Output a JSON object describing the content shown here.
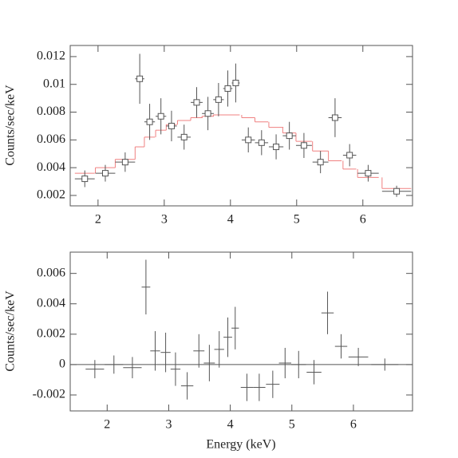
{
  "chart_data": [
    {
      "type": "errorbar",
      "ylabel": "Counts/sec/keV",
      "x": [
        1.8,
        2.11,
        2.41,
        2.63,
        2.78,
        2.95,
        3.11,
        3.3,
        3.49,
        3.66,
        3.82,
        3.96,
        4.08,
        4.27,
        4.47,
        4.69,
        4.89,
        5.11,
        5.36,
        5.58,
        5.8,
        6.08,
        6.51
      ],
      "xerr": [
        0.15,
        0.15,
        0.15,
        0.07,
        0.08,
        0.08,
        0.08,
        0.1,
        0.09,
        0.09,
        0.08,
        0.07,
        0.06,
        0.1,
        0.1,
        0.11,
        0.1,
        0.12,
        0.12,
        0.1,
        0.1,
        0.16,
        0.22
      ],
      "values": [
        0.0032,
        0.0036,
        0.0044,
        0.0104,
        0.0073,
        0.0077,
        0.007,
        0.0062,
        0.0087,
        0.0079,
        0.0089,
        0.0097,
        0.0101,
        0.006,
        0.0058,
        0.0055,
        0.0063,
        0.0056,
        0.0044,
        0.0076,
        0.0049,
        0.0036,
        0.0023
      ],
      "yerr": [
        0.0006,
        0.0006,
        0.0007,
        0.0018,
        0.0013,
        0.0013,
        0.0011,
        0.0009,
        0.0011,
        0.0012,
        0.0012,
        0.0013,
        0.0014,
        0.0009,
        0.0009,
        0.0009,
        0.001,
        0.0009,
        0.0008,
        0.0014,
        0.0008,
        0.0006,
        0.0004
      ],
      "model": [
        0.0036,
        0.004,
        0.0046,
        0.0055,
        0.0062,
        0.0067,
        0.0071,
        0.0074,
        0.0076,
        0.0077,
        0.0078,
        0.0078,
        0.0078,
        0.0076,
        0.0073,
        0.0069,
        0.0065,
        0.0059,
        0.0052,
        0.0045,
        0.0039,
        0.0033,
        0.0025
      ],
      "color": "#555555",
      "model_color": "#f08080",
      "xlim": [
        1.58,
        6.75
      ],
      "xticks": [
        2,
        3,
        4,
        5,
        6
      ],
      "ylim": [
        0.00125,
        0.0128
      ],
      "yticks": [
        0.002,
        0.004,
        0.006,
        0.008,
        0.01,
        0.012
      ]
    },
    {
      "type": "errorbar",
      "xlabel": "Energy (keV)",
      "ylabel": "Counts/sec/keV",
      "x": [
        1.8,
        2.11,
        2.41,
        2.63,
        2.78,
        2.95,
        3.11,
        3.3,
        3.49,
        3.66,
        3.82,
        3.96,
        4.08,
        4.27,
        4.47,
        4.69,
        4.89,
        5.11,
        5.36,
        5.58,
        5.8,
        6.08,
        6.51
      ],
      "xerr": [
        0.15,
        0.15,
        0.15,
        0.07,
        0.08,
        0.08,
        0.08,
        0.1,
        0.09,
        0.09,
        0.08,
        0.07,
        0.06,
        0.1,
        0.1,
        0.11,
        0.1,
        0.12,
        0.12,
        0.1,
        0.1,
        0.16,
        0.22
      ],
      "values": [
        -0.0003,
        0,
        -0.0002,
        0.0051,
        0.0009,
        0.0008,
        -0.0003,
        -0.0014,
        0.0009,
        0.0001,
        0.001,
        0.0018,
        0.0024,
        -0.0015,
        -0.0015,
        -0.0013,
        0.0001,
        0,
        -0.0005,
        0.0034,
        0.0012,
        0.0005,
        0
      ],
      "yerr": [
        0.0006,
        0.0006,
        0.0007,
        0.0018,
        0.0013,
        0.0013,
        0.0011,
        0.0009,
        0.0011,
        0.0012,
        0.0012,
        0.0013,
        0.0014,
        0.0009,
        0.0009,
        0.0009,
        0.001,
        0.0009,
        0.0008,
        0.0014,
        0.0008,
        0.0006,
        0.0004
      ],
      "color": "#555555",
      "zero_line": true,
      "xlim": [
        1.4,
        6.96
      ],
      "xticks": [
        2,
        3,
        4,
        5,
        6
      ],
      "ylim": [
        -0.00305,
        0.0074
      ],
      "yticks": [
        -0.002,
        0,
        0.002,
        0.004,
        0.006
      ]
    }
  ]
}
